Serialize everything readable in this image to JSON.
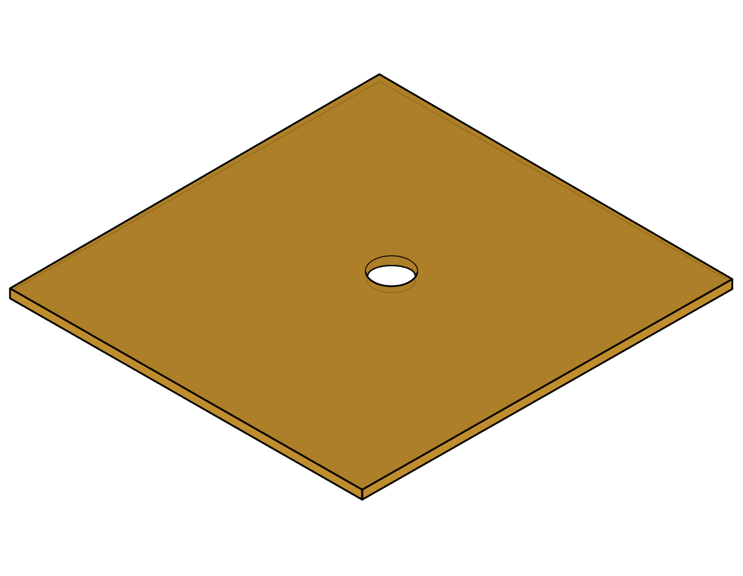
{
  "scene": {
    "subject": "square-plate-with-center-hole",
    "view": "isometric",
    "background_color": "#ffffff",
    "plate": {
      "top_color": "#ad7f28",
      "side_color": "#c08d2e",
      "edge_color": "#000000",
      "bevel_color": "#8f6a1f"
    },
    "hole": {
      "fill_color": "#ffffff",
      "wall_color": "#ad7f28"
    }
  }
}
